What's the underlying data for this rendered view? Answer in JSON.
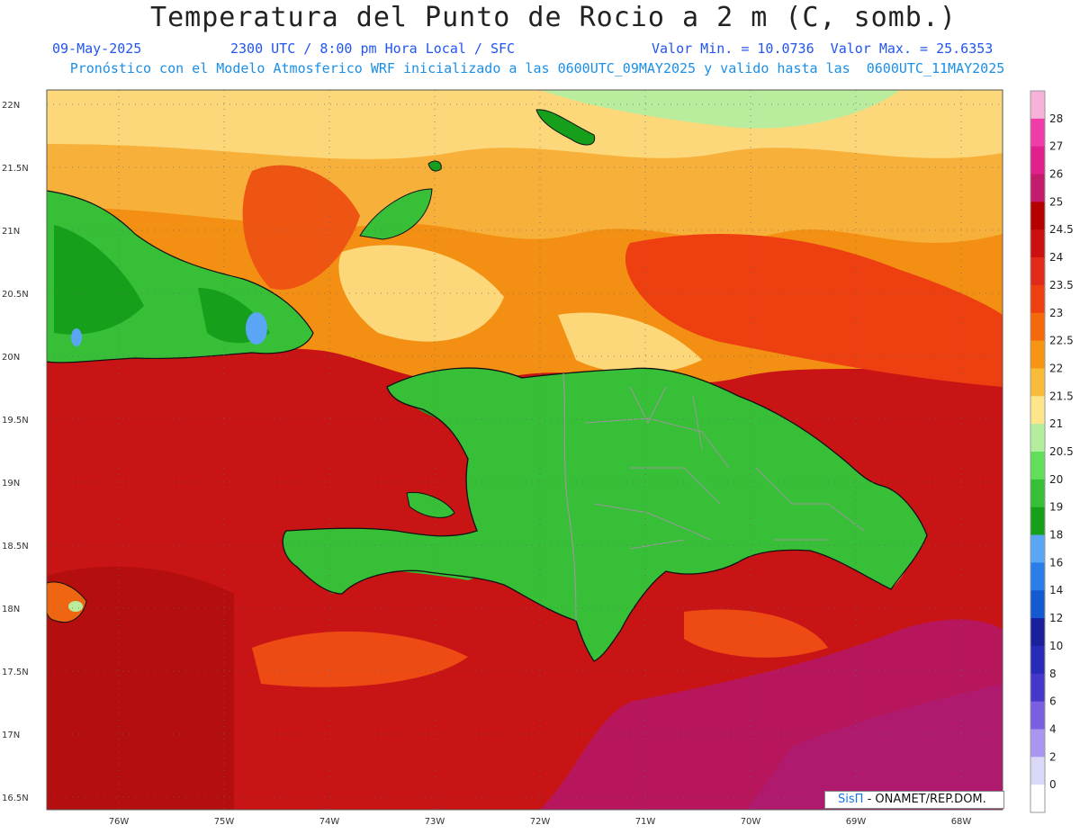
{
  "header": {
    "title": "Temperatura del Punto de Rocio a 2 m (C, somb.)",
    "date": "09-May-2025",
    "time": "2300 UTC / 8:00 pm Hora Local / SFC",
    "minmax": "Valor Min. = 10.0736  Valor Max. = 25.6353",
    "subtitle": "Pronóstico con el Modelo Atmosferico WRF inicializado a las 0600UTC_09MAY2025 y valido hasta las  0600UTC_11MAY2025"
  },
  "axes": {
    "lat_labels": [
      "22N",
      "21.5N",
      "21N",
      "20.5N",
      "20N",
      "19.5N",
      "19N",
      "18.5N",
      "18N",
      "17.5N",
      "17N",
      "16.5N"
    ],
    "lon_labels": [
      "76W",
      "75W",
      "74W",
      "73W",
      "72W",
      "71W",
      "70W",
      "69W",
      "68W"
    ]
  },
  "colorbar": {
    "labels": [
      "28",
      "27",
      "26",
      "25",
      "24.5",
      "24",
      "23.5",
      "23",
      "22.5",
      "22",
      "21.5",
      "21",
      "20.5",
      "20",
      "19",
      "18",
      "16",
      "14",
      "12",
      "10",
      "8",
      "6",
      "4",
      "2",
      "0"
    ],
    "colors": [
      "#f7b2d9",
      "#ee3ca8",
      "#e0208c",
      "#c41c6c",
      "#b50000",
      "#cc1010",
      "#e02a1a",
      "#ee3f10",
      "#f46a0a",
      "#f79411",
      "#f9bb3a",
      "#fde58c",
      "#b3ee9e",
      "#62df5a",
      "#37bf38",
      "#169f1a",
      "#5aa6f4",
      "#2b7de8",
      "#135ad0",
      "#1a1f9c",
      "#2a2ab8",
      "#4537c8",
      "#7a5fe0",
      "#a996f0",
      "#d9d9f7",
      "#ffffff"
    ]
  },
  "credit": {
    "brand": "SisΠ",
    "text": "- ONAMET/REP.DOM."
  }
}
